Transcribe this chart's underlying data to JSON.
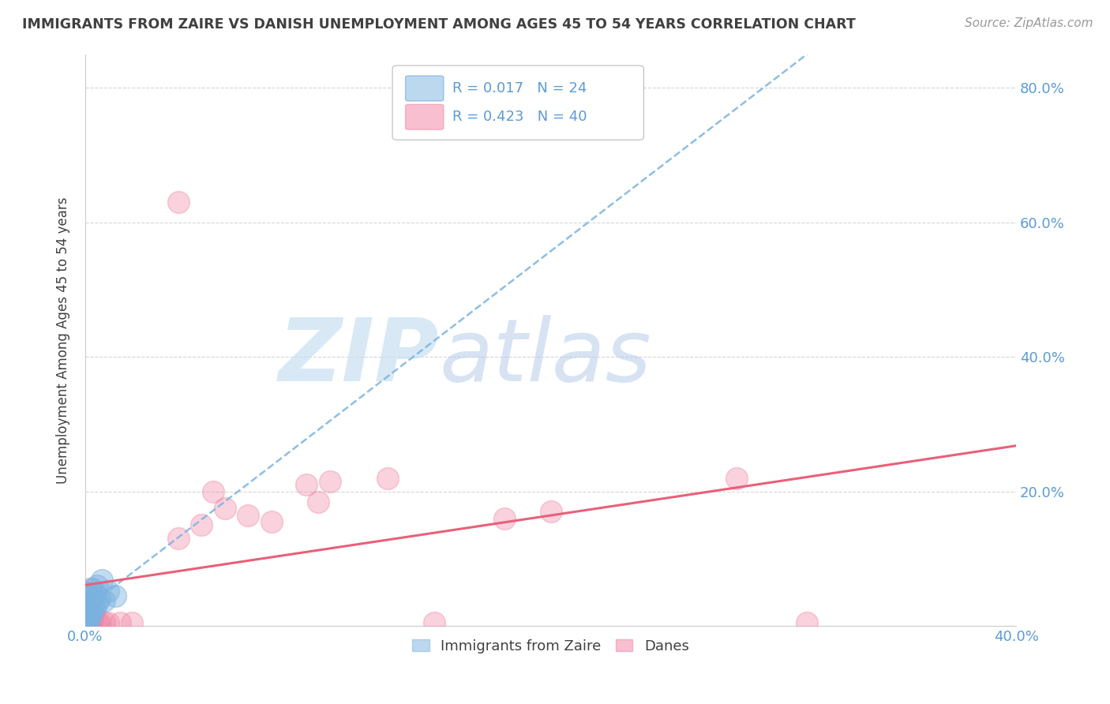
{
  "title": "IMMIGRANTS FROM ZAIRE VS DANISH UNEMPLOYMENT AMONG AGES 45 TO 54 YEARS CORRELATION CHART",
  "source": "Source: ZipAtlas.com",
  "ylabel": "Unemployment Among Ages 45 to 54 years",
  "xlim": [
    0.0,
    0.4
  ],
  "ylim": [
    0.0,
    0.85
  ],
  "yticks": [
    0.0,
    0.2,
    0.4,
    0.6,
    0.8
  ],
  "ytick_labels": [
    "",
    "20.0%",
    "40.0%",
    "60.0%",
    "80.0%"
  ],
  "xtick_labels": [
    "0.0%",
    "40.0%"
  ],
  "zaire_color": "#7ab3e0",
  "danes_color": "#f080a0",
  "zaire_line_color": "#7ab3e0",
  "danes_line_color": "#e8607a",
  "watermark_zip": "ZIP",
  "watermark_atlas": "atlas",
  "background_color": "#ffffff",
  "grid_color": "#cccccc",
  "title_color": "#404040",
  "tick_color": "#5b9bd5",
  "legend_r1": "R = 0.017   N = 24",
  "legend_r2": "R = 0.423   N = 40",
  "legend_label1": "Immigrants from Zaire",
  "legend_label2": "Danes",
  "zaire_points": [
    [
      0.0,
      0.04
    ],
    [
      0.0,
      0.025
    ],
    [
      0.0,
      0.018
    ],
    [
      0.0,
      0.01
    ],
    [
      0.001,
      0.05
    ],
    [
      0.001,
      0.03
    ],
    [
      0.001,
      0.015
    ],
    [
      0.001,
      0.008
    ],
    [
      0.002,
      0.045
    ],
    [
      0.002,
      0.032
    ],
    [
      0.002,
      0.02
    ],
    [
      0.002,
      0.012
    ],
    [
      0.003,
      0.055
    ],
    [
      0.003,
      0.038
    ],
    [
      0.003,
      0.022
    ],
    [
      0.004,
      0.048
    ],
    [
      0.004,
      0.028
    ],
    [
      0.005,
      0.06
    ],
    [
      0.005,
      0.035
    ],
    [
      0.006,
      0.042
    ],
    [
      0.007,
      0.068
    ],
    [
      0.008,
      0.038
    ],
    [
      0.01,
      0.052
    ],
    [
      0.013,
      0.045
    ]
  ],
  "danes_points": [
    [
      0.0,
      0.05
    ],
    [
      0.0,
      0.03
    ],
    [
      0.0,
      0.02
    ],
    [
      0.0,
      0.012
    ],
    [
      0.0,
      0.005
    ],
    [
      0.001,
      0.045
    ],
    [
      0.001,
      0.028
    ],
    [
      0.001,
      0.015
    ],
    [
      0.001,
      0.005
    ],
    [
      0.002,
      0.055
    ],
    [
      0.002,
      0.035
    ],
    [
      0.002,
      0.018
    ],
    [
      0.002,
      0.008
    ],
    [
      0.003,
      0.04
    ],
    [
      0.003,
      0.022
    ],
    [
      0.003,
      0.01
    ],
    [
      0.004,
      0.048
    ],
    [
      0.004,
      0.025
    ],
    [
      0.005,
      0.005
    ],
    [
      0.006,
      0.005
    ],
    [
      0.008,
      0.005
    ],
    [
      0.01,
      0.005
    ],
    [
      0.015,
      0.005
    ],
    [
      0.02,
      0.005
    ],
    [
      0.04,
      0.13
    ],
    [
      0.05,
      0.15
    ],
    [
      0.055,
      0.2
    ],
    [
      0.06,
      0.175
    ],
    [
      0.07,
      0.165
    ],
    [
      0.08,
      0.155
    ],
    [
      0.095,
      0.21
    ],
    [
      0.1,
      0.185
    ],
    [
      0.105,
      0.215
    ],
    [
      0.13,
      0.22
    ],
    [
      0.15,
      0.005
    ],
    [
      0.18,
      0.16
    ],
    [
      0.2,
      0.17
    ],
    [
      0.28,
      0.22
    ],
    [
      0.31,
      0.005
    ],
    [
      0.04,
      0.63
    ]
  ]
}
